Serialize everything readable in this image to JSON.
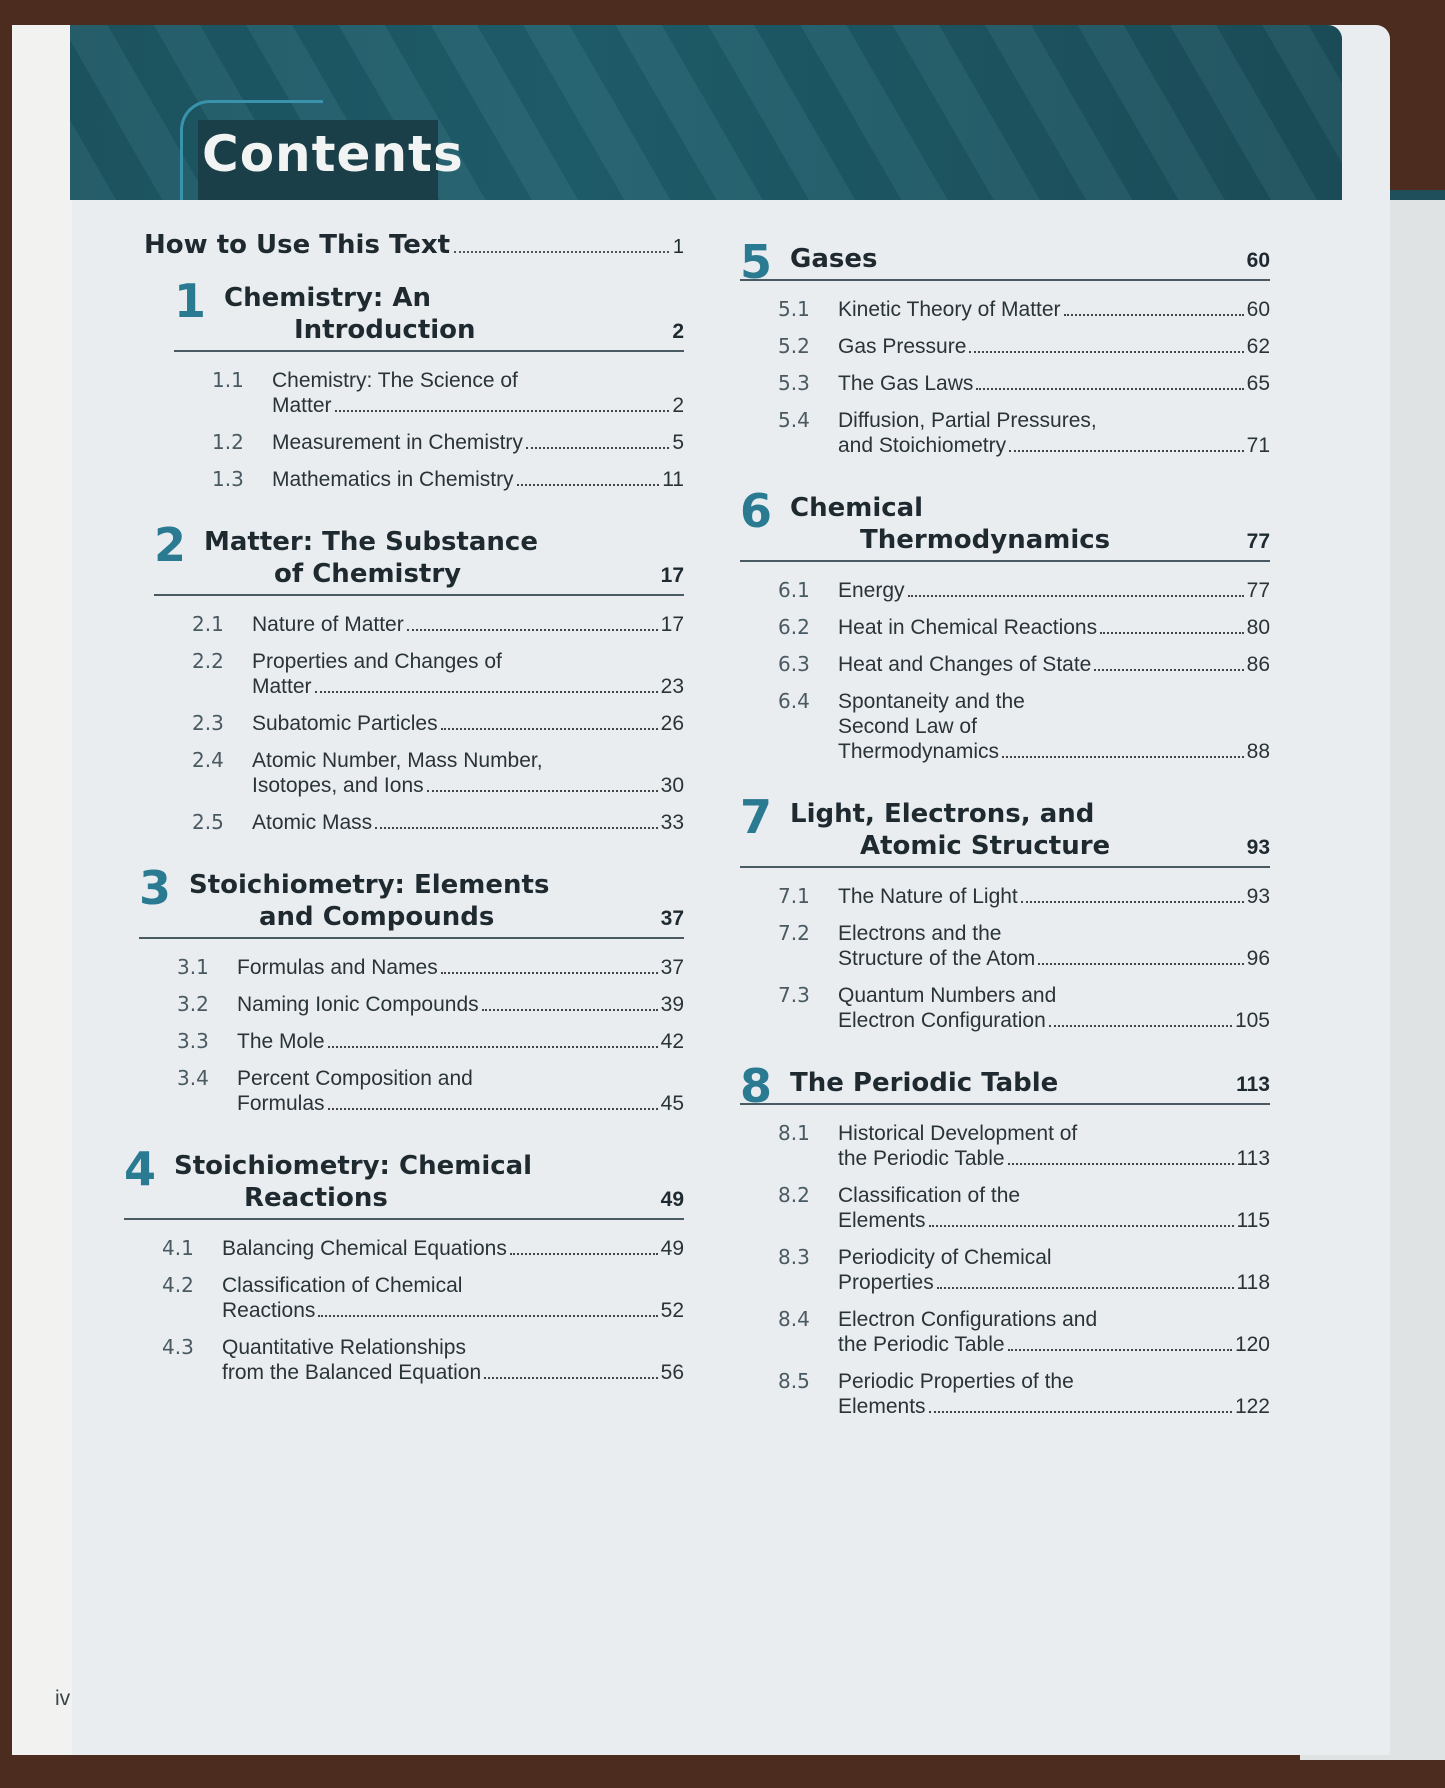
{
  "header": {
    "title": "Contents"
  },
  "how_to": {
    "label": "How to Use This Text",
    "page": "1"
  },
  "columns": [
    [
      {
        "num": "1",
        "title": [
          "Chemistry: An",
          "Introduction"
        ],
        "page": "2",
        "sections": [
          {
            "num": "1.1",
            "lines": [
              "Chemistry: The Science of",
              "Matter"
            ],
            "page": "2"
          },
          {
            "num": "1.2",
            "lines": [
              "Measurement in Chemistry"
            ],
            "page": "5"
          },
          {
            "num": "1.3",
            "lines": [
              "Mathematics in Chemistry"
            ],
            "page": "11"
          }
        ]
      },
      {
        "num": "2",
        "title": [
          "Matter: The Substance",
          "of Chemistry"
        ],
        "page": "17",
        "sections": [
          {
            "num": "2.1",
            "lines": [
              "Nature of Matter"
            ],
            "page": "17"
          },
          {
            "num": "2.2",
            "lines": [
              "Properties and Changes of",
              "Matter"
            ],
            "page": "23"
          },
          {
            "num": "2.3",
            "lines": [
              "Subatomic Particles"
            ],
            "page": "26"
          },
          {
            "num": "2.4",
            "lines": [
              "Atomic Number, Mass Number,",
              "Isotopes, and Ions"
            ],
            "page": "30"
          },
          {
            "num": "2.5",
            "lines": [
              "Atomic Mass"
            ],
            "page": "33"
          }
        ]
      },
      {
        "num": "3",
        "title": [
          "Stoichiometry: Elements",
          "and Compounds"
        ],
        "page": "37",
        "sections": [
          {
            "num": "3.1",
            "lines": [
              "Formulas and Names"
            ],
            "page": "37"
          },
          {
            "num": "3.2",
            "lines": [
              "Naming Ionic Compounds"
            ],
            "page": "39"
          },
          {
            "num": "3.3",
            "lines": [
              "The Mole"
            ],
            "page": "42"
          },
          {
            "num": "3.4",
            "lines": [
              "Percent Composition and",
              "Formulas"
            ],
            "page": "45"
          }
        ]
      },
      {
        "num": "4",
        "title": [
          "Stoichiometry: Chemical",
          "Reactions"
        ],
        "page": "49",
        "sections": [
          {
            "num": "4.1",
            "lines": [
              "Balancing Chemical Equations"
            ],
            "page": "49"
          },
          {
            "num": "4.2",
            "lines": [
              "Classification of Chemical",
              "Reactions"
            ],
            "page": "52"
          },
          {
            "num": "4.3",
            "lines": [
              "Quantitative Relationships",
              "from the Balanced Equation"
            ],
            "page": "56"
          }
        ]
      }
    ],
    [
      {
        "num": "5",
        "title": [
          "Gases"
        ],
        "page": "60",
        "sections": [
          {
            "num": "5.1",
            "lines": [
              "Kinetic Theory of Matter"
            ],
            "page": "60"
          },
          {
            "num": "5.2",
            "lines": [
              "Gas Pressure"
            ],
            "page": "62"
          },
          {
            "num": "5.3",
            "lines": [
              "The Gas Laws"
            ],
            "page": "65"
          },
          {
            "num": "5.4",
            "lines": [
              "Diffusion, Partial Pressures,",
              "and Stoichiometry"
            ],
            "page": "71"
          }
        ]
      },
      {
        "num": "6",
        "title": [
          "Chemical",
          "Thermodynamics"
        ],
        "page": "77",
        "sections": [
          {
            "num": "6.1",
            "lines": [
              "Energy"
            ],
            "page": "77"
          },
          {
            "num": "6.2",
            "lines": [
              "Heat in Chemical Reactions"
            ],
            "page": "80"
          },
          {
            "num": "6.3",
            "lines": [
              "Heat and Changes of State"
            ],
            "page": "86"
          },
          {
            "num": "6.4",
            "lines": [
              "Spontaneity and the",
              "Second Law of",
              "Thermodynamics"
            ],
            "page": "88"
          }
        ]
      },
      {
        "num": "7",
        "title": [
          "Light, Electrons, and",
          "Atomic Structure"
        ],
        "page": "93",
        "sections": [
          {
            "num": "7.1",
            "lines": [
              "The Nature of Light"
            ],
            "page": "93"
          },
          {
            "num": "7.2",
            "lines": [
              "Electrons and the",
              "Structure of the Atom"
            ],
            "page": "96"
          },
          {
            "num": "7.3",
            "lines": [
              "Quantum Numbers and",
              "Electron Configuration"
            ],
            "page": "105"
          }
        ]
      },
      {
        "num": "8",
        "title": [
          "The Periodic Table"
        ],
        "page": "113",
        "sections": [
          {
            "num": "8.1",
            "lines": [
              "Historical Development of",
              "the Periodic Table"
            ],
            "page": "113"
          },
          {
            "num": "8.2",
            "lines": [
              "Classification of the",
              "Elements"
            ],
            "page": "115"
          },
          {
            "num": "8.3",
            "lines": [
              "Periodicity of Chemical",
              "Properties"
            ],
            "page": "118"
          },
          {
            "num": "8.4",
            "lines": [
              "Electron Configurations and",
              "the Periodic Table"
            ],
            "page": "120"
          },
          {
            "num": "8.5",
            "lines": [
              "Periodic Properties of the",
              "Elements"
            ],
            "page": "122"
          }
        ]
      }
    ]
  ],
  "folio": "iv",
  "colors": {
    "accent": "#2a7a92",
    "header": "#1d5663"
  }
}
